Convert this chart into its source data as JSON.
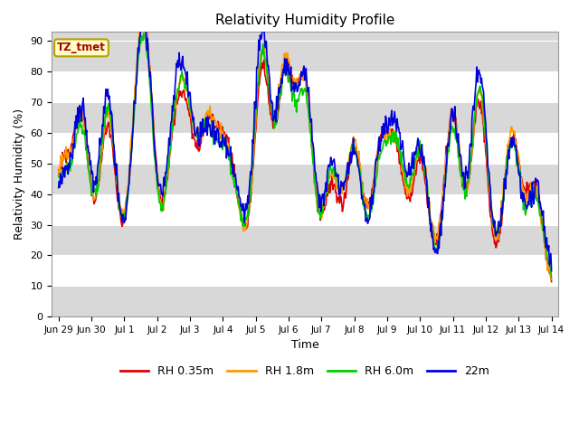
{
  "title": "Relativity Humidity Profile",
  "xlabel": "Time",
  "ylabel": "Relativity Humidity (%)",
  "ylim": [
    0,
    93
  ],
  "yticks": [
    0,
    10,
    20,
    30,
    40,
    50,
    60,
    70,
    80,
    90
  ],
  "annotation": "TZ_tmet",
  "annotation_bg": "#ffffc8",
  "annotation_border": "#b8a000",
  "annotation_text_color": "#aa0000",
  "bg_color": "#d8d8d8",
  "white_band_color": "#ffffff",
  "colors": {
    "RH 0.35m": "#dd0000",
    "RH 1.8m": "#ff9900",
    "RH 6.0m": "#00cc00",
    "22m": "#0000dd"
  },
  "legend_labels": [
    "RH 0.35m",
    "RH 1.8m",
    "RH 6.0m",
    "22m"
  ],
  "x_tick_labels": [
    "Jun 29",
    "Jun 30",
    "Jul 1",
    "Jul 2",
    "Jul 3",
    "Jul 4",
    "Jul 5",
    "Jul 6",
    "Jul 7",
    "Jul 8",
    "Jul 9",
    "Jul 10",
    "Jul 11",
    "Jul 12",
    "Jul 13",
    "Jul 14"
  ],
  "linewidth": 1.2,
  "figsize": [
    6.4,
    4.8
  ],
  "dpi": 100
}
